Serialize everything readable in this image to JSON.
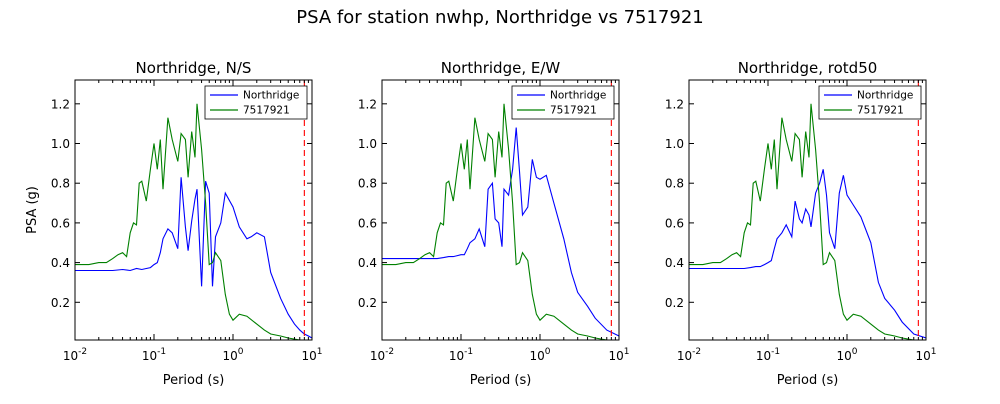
{
  "figure": {
    "suptitle": "PSA for station nwhp, Northridge vs 7517921"
  },
  "chart_data": [
    {
      "type": "line",
      "title": "Northridge, N/S",
      "xlabel": "Period (s)",
      "ylabel": "PSA (g)",
      "xscale": "log",
      "xlim": [
        0.01,
        10
      ],
      "ylim": [
        0.01,
        1.32
      ],
      "yticks": [
        0.2,
        0.4,
        0.6,
        0.8,
        1.0,
        1.2
      ],
      "ytick_labels": [
        "0.2",
        "0.4",
        "0.6",
        "0.8",
        "1.0",
        "1.2"
      ],
      "xtick_labels": [
        {
          "base": "10",
          "exp": "-2"
        },
        {
          "base": "10",
          "exp": "-1"
        },
        {
          "base": "10",
          "exp": "0"
        },
        {
          "base": "10",
          "exp": "1"
        }
      ],
      "vline": {
        "x": 8,
        "color": "#ff0000",
        "style": "dashed"
      },
      "legend_position": "top-right",
      "series": [
        {
          "name": "Northridge",
          "color": "#0000ff",
          "x": [
            0.01,
            0.015,
            0.02,
            0.03,
            0.04,
            0.05,
            0.06,
            0.07,
            0.08,
            0.09,
            0.1,
            0.11,
            0.12,
            0.13,
            0.15,
            0.17,
            0.2,
            0.22,
            0.25,
            0.27,
            0.3,
            0.33,
            0.35,
            0.4,
            0.45,
            0.5,
            0.55,
            0.6,
            0.7,
            0.8,
            1.0,
            1.2,
            1.5,
            1.7,
            2.0,
            2.5,
            3.0,
            4.0,
            5.0,
            6.0,
            7.0,
            8.0,
            9.0,
            10.0
          ],
          "y": [
            0.36,
            0.36,
            0.36,
            0.36,
            0.365,
            0.36,
            0.37,
            0.365,
            0.37,
            0.375,
            0.39,
            0.4,
            0.45,
            0.52,
            0.57,
            0.55,
            0.47,
            0.83,
            0.58,
            0.46,
            0.61,
            0.72,
            0.77,
            0.28,
            0.81,
            0.75,
            0.28,
            0.53,
            0.6,
            0.75,
            0.68,
            0.58,
            0.52,
            0.53,
            0.55,
            0.53,
            0.35,
            0.22,
            0.14,
            0.09,
            0.06,
            0.04,
            0.03,
            0.02
          ]
        },
        {
          "name": "7517921",
          "color": "#008000",
          "x": [
            0.01,
            0.015,
            0.02,
            0.025,
            0.03,
            0.035,
            0.04,
            0.045,
            0.05,
            0.055,
            0.06,
            0.065,
            0.07,
            0.08,
            0.09,
            0.1,
            0.11,
            0.12,
            0.13,
            0.15,
            0.17,
            0.2,
            0.22,
            0.25,
            0.27,
            0.3,
            0.33,
            0.35,
            0.4,
            0.45,
            0.5,
            0.55,
            0.6,
            0.7,
            0.8,
            0.9,
            1.0,
            1.2,
            1.5,
            2.0,
            2.5,
            3.0,
            4.0,
            5.0,
            7.0,
            10.0
          ],
          "y": [
            0.39,
            0.39,
            0.4,
            0.4,
            0.42,
            0.44,
            0.45,
            0.43,
            0.55,
            0.6,
            0.59,
            0.8,
            0.81,
            0.71,
            0.87,
            1.0,
            0.87,
            1.02,
            0.77,
            1.13,
            1.02,
            0.91,
            1.05,
            1.02,
            0.83,
            1.06,
            0.93,
            1.2,
            0.97,
            0.7,
            0.39,
            0.4,
            0.45,
            0.41,
            0.24,
            0.14,
            0.11,
            0.14,
            0.13,
            0.09,
            0.06,
            0.04,
            0.03,
            0.02,
            0.01,
            0.01
          ]
        }
      ]
    },
    {
      "type": "line",
      "title": "Northridge, E/W",
      "xlabel": "Period (s)",
      "ylabel": "",
      "xscale": "log",
      "xlim": [
        0.01,
        10
      ],
      "ylim": [
        0.01,
        1.32
      ],
      "yticks": [
        0.2,
        0.4,
        0.6,
        0.8,
        1.0,
        1.2
      ],
      "ytick_labels": [
        "0.2",
        "0.4",
        "0.6",
        "0.8",
        "1.0",
        "1.2"
      ],
      "xtick_labels": [
        {
          "base": "10",
          "exp": "-2"
        },
        {
          "base": "10",
          "exp": "-1"
        },
        {
          "base": "10",
          "exp": "0"
        },
        {
          "base": "10",
          "exp": "1"
        }
      ],
      "vline": {
        "x": 8,
        "color": "#ff0000",
        "style": "dashed"
      },
      "legend_position": "top-right",
      "series": [
        {
          "name": "Northridge",
          "color": "#0000ff",
          "x": [
            0.01,
            0.015,
            0.02,
            0.03,
            0.04,
            0.05,
            0.06,
            0.07,
            0.08,
            0.09,
            0.1,
            0.11,
            0.12,
            0.13,
            0.15,
            0.17,
            0.2,
            0.22,
            0.25,
            0.27,
            0.3,
            0.33,
            0.35,
            0.4,
            0.45,
            0.5,
            0.55,
            0.6,
            0.7,
            0.8,
            0.9,
            1.0,
            1.2,
            1.5,
            2.0,
            2.5,
            3.0,
            4.0,
            5.0,
            7.0,
            10.0
          ],
          "y": [
            0.42,
            0.42,
            0.42,
            0.42,
            0.42,
            0.42,
            0.425,
            0.43,
            0.43,
            0.435,
            0.44,
            0.44,
            0.47,
            0.5,
            0.52,
            0.57,
            0.48,
            0.77,
            0.8,
            0.62,
            0.6,
            0.48,
            0.77,
            0.74,
            0.87,
            1.08,
            0.86,
            0.64,
            0.68,
            0.92,
            0.83,
            0.82,
            0.84,
            0.7,
            0.52,
            0.35,
            0.25,
            0.18,
            0.12,
            0.06,
            0.03
          ]
        },
        {
          "name": "7517921",
          "color": "#008000",
          "x": [
            0.01,
            0.015,
            0.02,
            0.025,
            0.03,
            0.035,
            0.04,
            0.045,
            0.05,
            0.055,
            0.06,
            0.065,
            0.07,
            0.08,
            0.09,
            0.1,
            0.11,
            0.12,
            0.13,
            0.15,
            0.17,
            0.2,
            0.22,
            0.25,
            0.27,
            0.3,
            0.33,
            0.35,
            0.4,
            0.45,
            0.5,
            0.55,
            0.6,
            0.7,
            0.8,
            0.9,
            1.0,
            1.2,
            1.5,
            2.0,
            2.5,
            3.0,
            4.0,
            5.0,
            7.0,
            10.0
          ],
          "y": [
            0.39,
            0.39,
            0.4,
            0.4,
            0.42,
            0.44,
            0.45,
            0.43,
            0.55,
            0.6,
            0.59,
            0.8,
            0.81,
            0.71,
            0.87,
            1.0,
            0.87,
            1.02,
            0.77,
            1.13,
            1.02,
            0.91,
            1.05,
            1.02,
            0.83,
            1.06,
            0.93,
            1.2,
            0.97,
            0.7,
            0.39,
            0.4,
            0.45,
            0.41,
            0.24,
            0.14,
            0.11,
            0.14,
            0.13,
            0.09,
            0.06,
            0.04,
            0.03,
            0.02,
            0.01,
            0.01
          ]
        }
      ]
    },
    {
      "type": "line",
      "title": "Northridge, rotd50",
      "xlabel": "Period (s)",
      "ylabel": "",
      "xscale": "log",
      "xlim": [
        0.01,
        10
      ],
      "ylim": [
        0.01,
        1.32
      ],
      "yticks": [
        0.2,
        0.4,
        0.6,
        0.8,
        1.0,
        1.2
      ],
      "ytick_labels": [
        "0.2",
        "0.4",
        "0.6",
        "0.8",
        "1.0",
        "1.2"
      ],
      "xtick_labels": [
        {
          "base": "10",
          "exp": "-2"
        },
        {
          "base": "10",
          "exp": "-1"
        },
        {
          "base": "10",
          "exp": "0"
        },
        {
          "base": "10",
          "exp": "1"
        }
      ],
      "vline": {
        "x": 8,
        "color": "#ff0000",
        "style": "dashed"
      },
      "legend_position": "top-right",
      "series": [
        {
          "name": "Northridge",
          "color": "#0000ff",
          "x": [
            0.01,
            0.015,
            0.02,
            0.03,
            0.04,
            0.05,
            0.06,
            0.07,
            0.08,
            0.09,
            0.1,
            0.11,
            0.12,
            0.13,
            0.15,
            0.17,
            0.2,
            0.22,
            0.25,
            0.27,
            0.3,
            0.33,
            0.35,
            0.4,
            0.45,
            0.5,
            0.55,
            0.6,
            0.7,
            0.8,
            0.9,
            1.0,
            1.2,
            1.5,
            2.0,
            2.5,
            3.0,
            4.0,
            5.0,
            7.0,
            10.0
          ],
          "y": [
            0.37,
            0.37,
            0.37,
            0.37,
            0.37,
            0.37,
            0.375,
            0.38,
            0.38,
            0.39,
            0.4,
            0.41,
            0.47,
            0.52,
            0.55,
            0.59,
            0.53,
            0.71,
            0.62,
            0.6,
            0.67,
            0.64,
            0.58,
            0.75,
            0.8,
            0.87,
            0.74,
            0.55,
            0.47,
            0.75,
            0.84,
            0.74,
            0.69,
            0.63,
            0.5,
            0.3,
            0.22,
            0.16,
            0.1,
            0.04,
            0.02
          ]
        },
        {
          "name": "7517921",
          "color": "#008000",
          "x": [
            0.01,
            0.015,
            0.02,
            0.025,
            0.03,
            0.035,
            0.04,
            0.045,
            0.05,
            0.055,
            0.06,
            0.065,
            0.07,
            0.08,
            0.09,
            0.1,
            0.11,
            0.12,
            0.13,
            0.15,
            0.17,
            0.2,
            0.22,
            0.25,
            0.27,
            0.3,
            0.33,
            0.35,
            0.4,
            0.45,
            0.5,
            0.55,
            0.6,
            0.7,
            0.8,
            0.9,
            1.0,
            1.2,
            1.5,
            2.0,
            2.5,
            3.0,
            4.0,
            5.0,
            7.0,
            10.0
          ],
          "y": [
            0.39,
            0.39,
            0.4,
            0.4,
            0.42,
            0.44,
            0.45,
            0.43,
            0.55,
            0.6,
            0.59,
            0.8,
            0.81,
            0.71,
            0.87,
            1.0,
            0.87,
            1.02,
            0.77,
            1.13,
            1.02,
            0.91,
            1.05,
            1.02,
            0.83,
            1.06,
            0.93,
            1.2,
            0.97,
            0.7,
            0.39,
            0.4,
            0.45,
            0.41,
            0.24,
            0.14,
            0.11,
            0.14,
            0.13,
            0.09,
            0.06,
            0.04,
            0.03,
            0.02,
            0.01,
            0.01
          ]
        }
      ]
    }
  ]
}
